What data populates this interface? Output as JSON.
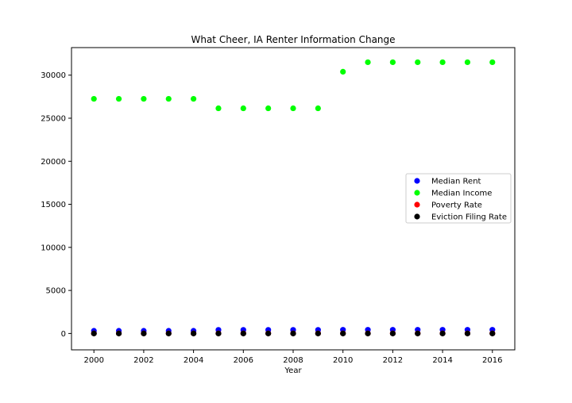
{
  "chart_data": {
    "type": "scatter",
    "title": "What Cheer, IA Renter Information Change",
    "xlabel": "Year",
    "ylabel": "",
    "xlim": [
      1999.1,
      2016.9
    ],
    "ylim": [
      -1900,
      33200
    ],
    "x_ticks": [
      2000,
      2002,
      2004,
      2006,
      2008,
      2010,
      2012,
      2014,
      2016
    ],
    "y_ticks": [
      0,
      5000,
      10000,
      15000,
      20000,
      25000,
      30000
    ],
    "x": [
      2000,
      2001,
      2002,
      2003,
      2004,
      2005,
      2006,
      2007,
      2008,
      2009,
      2010,
      2011,
      2012,
      2013,
      2014,
      2015,
      2016
    ],
    "series": [
      {
        "name": "Median Rent",
        "color": "#0000ff",
        "values": [
          310,
          310,
          310,
          310,
          310,
          420,
          420,
          420,
          420,
          420,
          430,
          430,
          430,
          430,
          430,
          430,
          430
        ]
      },
      {
        "name": "Median Income",
        "color": "#00ff00",
        "values": [
          27250,
          27250,
          27250,
          27250,
          27250,
          26150,
          26150,
          26150,
          26150,
          26150,
          30400,
          31500,
          31500,
          31500,
          31500,
          31500,
          31500
        ]
      },
      {
        "name": "Poverty Rate",
        "color": "#ff0000",
        "values": [
          12,
          12,
          12,
          12,
          12,
          14,
          14,
          14,
          14,
          14,
          15,
          15,
          15,
          15,
          15,
          15,
          15
        ]
      },
      {
        "name": "Eviction Filing Rate",
        "color": "#000000",
        "values": [
          0,
          0,
          0,
          0,
          0,
          0,
          0,
          0,
          0,
          0,
          0,
          0,
          0,
          0,
          0,
          0,
          0
        ]
      }
    ],
    "legend_position": "center-right",
    "grid": false
  }
}
